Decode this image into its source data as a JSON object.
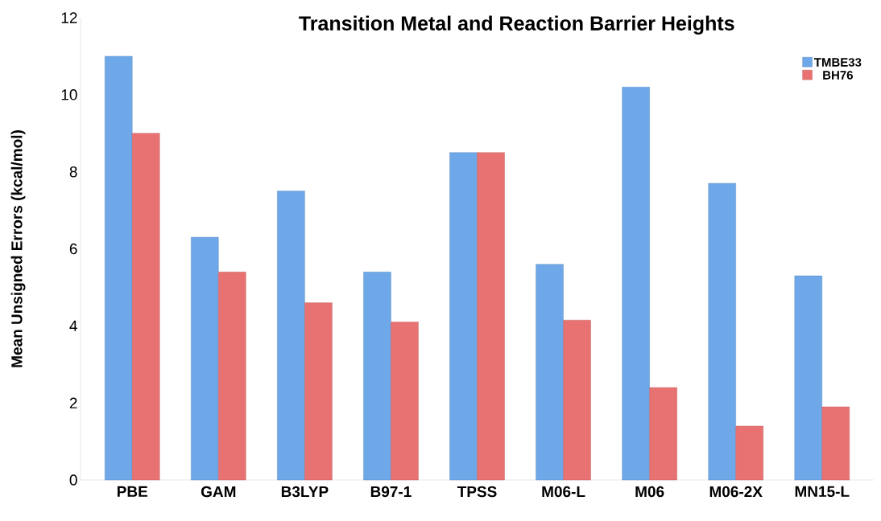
{
  "chart_data": {
    "type": "bar",
    "title": "Transition Metal and Reaction Barrier Heights",
    "ylabel": "Mean Unsigned Errors (kcal/mol)",
    "categories": [
      "PBE",
      "GAM",
      "B3LYP",
      "B97-1",
      "TPSS",
      "M06-L",
      "M06",
      "M06-2X",
      "MN15-L"
    ],
    "series": [
      {
        "name": "TMBE33",
        "color": "#6fa8e8",
        "values": [
          11.0,
          6.3,
          7.5,
          5.4,
          8.5,
          5.6,
          10.2,
          7.7,
          5.3
        ]
      },
      {
        "name": "BH76",
        "color": "#e87272",
        "values": [
          9.0,
          5.4,
          4.6,
          4.1,
          8.5,
          4.15,
          2.4,
          1.4,
          1.9
        ]
      }
    ],
    "ylim": [
      0,
      12
    ],
    "yticks": [
      0,
      2,
      4,
      6,
      8,
      10,
      12
    ],
    "legend": "top right"
  }
}
